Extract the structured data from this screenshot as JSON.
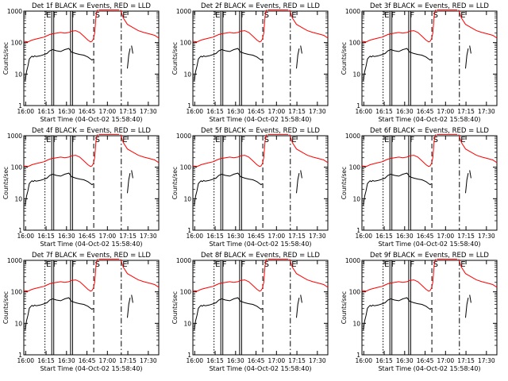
{
  "chart_data": [
    {
      "title": "Det 1f BLACK = Events, RED = LLD",
      "xlabel": "Start Time (04-Oct-02 15:58:40)",
      "xticks": [
        "16:00",
        "16:15",
        "16:30",
        "16:45",
        "17:00",
        "17:15",
        "17:30"
      ]
    },
    {
      "title": "Det 2f BLACK = Events, RED = LLD",
      "xlabel": "Start Time (04-Oct-02 15:58:40)",
      "xticks": [
        "16:00",
        "16:15",
        "16:30",
        "16:45",
        "17:00",
        "17:15",
        "17:30"
      ]
    },
    {
      "title": "Det 3f BLACK = Events, RED = LLD",
      "xlabel": "Start Time (04-Oct-02 15:58:40)",
      "xticks": [
        "16:00",
        "16:15",
        "16:30",
        "16:45",
        "17:00",
        "17:15",
        "17:30"
      ]
    },
    {
      "title": "Det 4f BLACK = Events, RED = LLD",
      "xlabel": "Start Time (04-Oct-02 15:58:40)",
      "xticks": [
        "16:00",
        "16:15",
        "16:30",
        "16:45",
        "17:00",
        "17:15",
        "17:30"
      ]
    },
    {
      "title": "Det 5f BLACK = Events, RED = LLD",
      "xlabel": "Start Time (04-Oct-02 15:58:40)",
      "xticks": [
        "16:00",
        "16:15",
        "16:30",
        "16:45",
        "17:00",
        "17:15",
        "17:30"
      ]
    },
    {
      "title": "Det 6f BLACK = Events, RED = LLD",
      "xlabel": "Start Time (04-Oct-02 15:58:40)",
      "xticks": [
        "16:00",
        "16:15",
        "16:30",
        "16:45",
        "17:00",
        "17:15",
        "17:30"
      ]
    },
    {
      "title": "Det 7f BLACK = Events, RED = LLD",
      "xlabel": "Start Time (04-Oct-02 15:58:40)",
      "xticks": [
        "16:00",
        "16:15",
        "16:30",
        "16:45",
        "17:00",
        "17:15",
        "17:30"
      ]
    },
    {
      "title": "Det 8f BLACK = Events, RED = LLD",
      "xlabel": "Start Time (04-Oct-02 15:58:40)",
      "xticks": [
        "16:00",
        "16:15",
        "16:30",
        "16:45",
        "17:00",
        "17:15",
        "17:30"
      ]
    },
    {
      "title": "Det 9f BLACK = Events, RED = LLD",
      "xlabel": "Start Time (04-Oct-02 15:58:40)",
      "xticks": [
        "16:00",
        "16:15",
        "16:30",
        "16:45",
        "17:00",
        "17:15",
        "17:30"
      ]
    }
  ],
  "common": {
    "type": "line",
    "ylabel": "Counts/sec",
    "yscale": "log",
    "ylim": [
      1,
      1000
    ],
    "yticks": [
      "1",
      "10",
      "100",
      "1000"
    ],
    "xlim_minutes_after_start": [
      0,
      99
    ],
    "x_minutes_after_start_note": "",
    "series_colors": {
      "events": "#000000",
      "lld": "#ff0000"
    },
    "markers": [
      {
        "label": "E",
        "t": 15.5,
        "style": "dotted"
      },
      {
        "label": "F",
        "t": 20.5,
        "style": "solid"
      },
      {
        "label": "F",
        "t": 34.3,
        "style": "solid"
      },
      {
        "label": "S",
        "t": 51.3,
        "style": "dashed"
      },
      {
        "label": "E",
        "t": 71.5,
        "style": "dashdot"
      }
    ],
    "series": {
      "lld_segments": [
        {
          "t": [
            0,
            3,
            6,
            9,
            12,
            15,
            17,
            19,
            21,
            24,
            27,
            30,
            33,
            35,
            38,
            41,
            44,
            47,
            49,
            50,
            51,
            52,
            53,
            54
          ],
          "v": [
            110,
            105,
            120,
            130,
            140,
            150,
            165,
            180,
            190,
            200,
            210,
            200,
            210,
            230,
            240,
            210,
            160,
            120,
            105,
            110,
            130,
            200,
            700,
            1100
          ]
        },
        {
          "t": [
            55,
            60,
            65,
            70
          ],
          "v": [
            1100,
            1100,
            1100,
            1100
          ]
        },
        {
          "t": [
            71,
            73,
            76,
            80,
            84,
            88,
            92,
            96,
            99
          ],
          "v": [
            1100,
            600,
            380,
            300,
            240,
            210,
            190,
            170,
            140
          ]
        }
      ],
      "events_segments": [
        {
          "t": [
            1,
            2,
            3,
            4,
            5,
            6,
            7,
            8,
            9
          ],
          "v": [
            6,
            12,
            18,
            30,
            34,
            37,
            35,
            38,
            36
          ]
        },
        {
          "t": [
            9,
            12,
            15,
            17,
            19,
            21,
            24,
            27,
            30,
            33,
            35,
            38,
            41,
            44,
            47,
            49,
            50,
            51
          ],
          "v": [
            36,
            38,
            42,
            45,
            55,
            60,
            55,
            52,
            60,
            65,
            50,
            45,
            42,
            40,
            35,
            30,
            28,
            30
          ]
        },
        {
          "t": [
            76,
            77,
            78
          ],
          "v": [
            15,
            40,
            65
          ]
        },
        {
          "t": [
            79,
            80
          ],
          "v": [
            80,
            45
          ]
        }
      ]
    }
  }
}
